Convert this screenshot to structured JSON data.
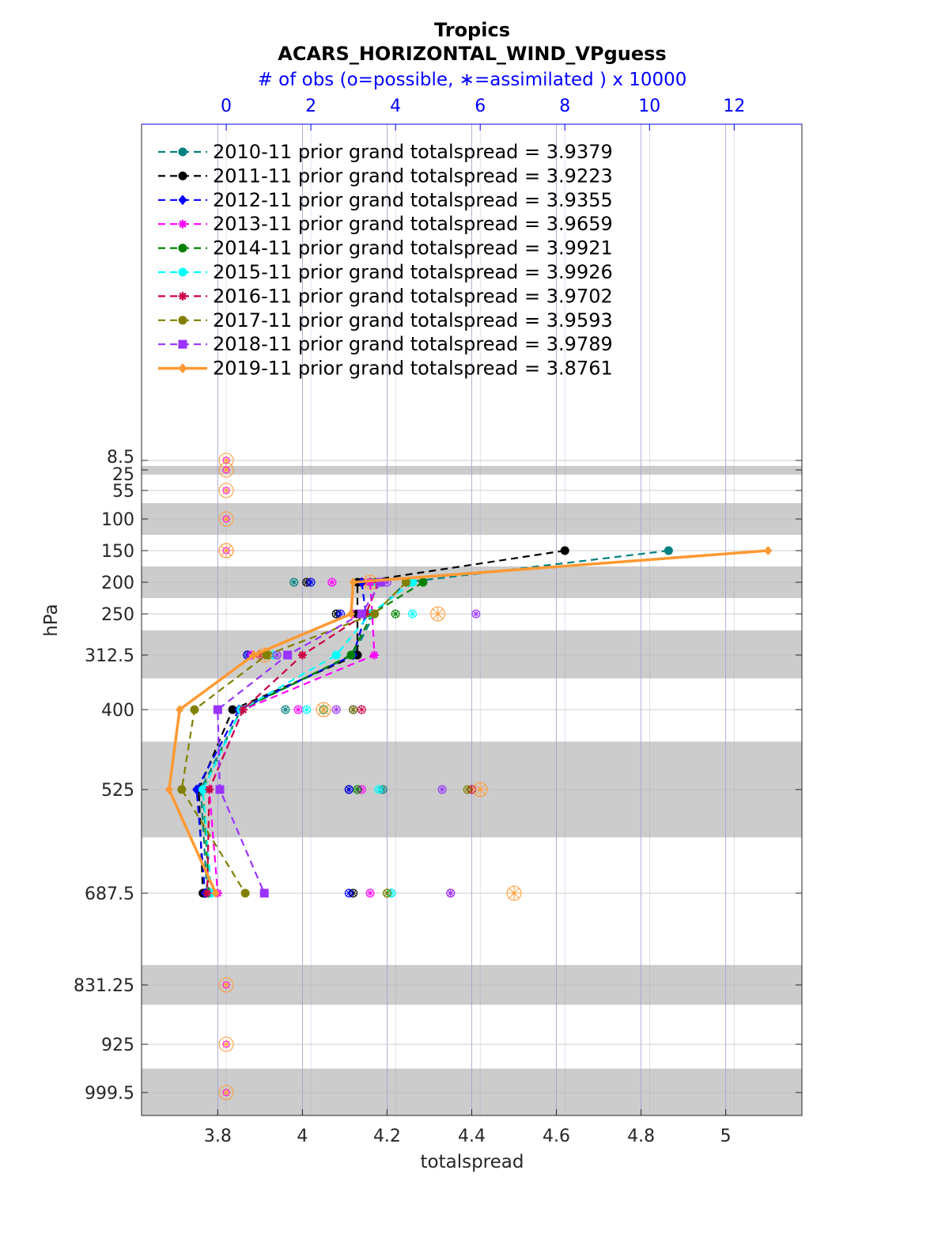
{
  "chart_data": {
    "type": "line",
    "title": "Tropics",
    "subtitle": "ACARS_HORIZONTAL_WIND_VPguess",
    "top_axis_label": "# of obs (o=possible, ∗=assimilated ) x 10000",
    "xlabel": "totalspread",
    "ylabel": "hPa",
    "xlim": [
      3.62,
      5.18
    ],
    "top_xlim": [
      -2,
      13.6
    ],
    "x_ticks": [
      "3.8",
      "4",
      "4.2",
      "4.4",
      "4.6",
      "4.8",
      "5"
    ],
    "top_x_ticks": [
      "0",
      "2",
      "4",
      "6",
      "8",
      "10",
      "12"
    ],
    "levels": [
      8.5,
      25,
      55,
      100,
      150,
      200,
      250,
      312.5,
      400,
      525,
      687.5,
      831.25,
      925,
      999.5
    ],
    "level_labels": [
      "8.5",
      "25",
      "55",
      "100",
      "150",
      "200",
      "250",
      "312.5",
      "400",
      "525",
      "687.5",
      "831.25",
      "925",
      "999.5"
    ],
    "layer_bands": [
      [
        18,
        32
      ],
      [
        75,
        125
      ],
      [
        175,
        225
      ],
      [
        275,
        350
      ],
      [
        450,
        600
      ],
      [
        800,
        862.5
      ],
      [
        962.5,
        1037
      ]
    ],
    "colors": {
      "grid": "#9c9cd6",
      "band": "#cccccc",
      "top_axis": "#0000ff"
    },
    "series": [
      {
        "name": "2010-11",
        "legend": "2010-11 prior grand totalspread = 3.9379",
        "color": "#008080",
        "marker": "circle",
        "solid": false,
        "levels": [
          150,
          200,
          250,
          312.5,
          400,
          525,
          687.5
        ],
        "values": [
          4.865,
          4.245,
          4.17,
          4.12,
          3.855,
          3.76,
          3.775
        ],
        "obs_possible": [
          null,
          1.6,
          2.6,
          0.5,
          1.4,
          3.7,
          3.9
        ],
        "obs_assimilated": [
          null,
          1.6,
          2.6,
          0.5,
          1.4,
          3.7,
          3.9
        ]
      },
      {
        "name": "2011-11",
        "legend": "2011-11 prior grand totalspread = 3.9223",
        "color": "#000000",
        "marker": "circle",
        "solid": false,
        "levels": [
          150,
          200,
          250,
          312.5,
          400,
          525,
          687.5
        ],
        "values": [
          4.62,
          4.13,
          4.13,
          4.13,
          3.835,
          3.755,
          3.765
        ],
        "obs_possible": [
          null,
          1.9,
          2.6,
          0.5,
          3.0,
          2.9,
          3.0
        ],
        "obs_assimilated": [
          null,
          1.9,
          2.6,
          0.5,
          3.0,
          2.9,
          3.0
        ]
      },
      {
        "name": "2012-11",
        "legend": "2012-11 prior grand totalspread = 3.9355",
        "color": "#0000ff",
        "marker": "diamond",
        "solid": false,
        "levels": [
          150,
          200,
          250,
          312.5,
          400,
          525,
          687.5
        ],
        "values": [
          null,
          4.14,
          4.15,
          4.12,
          3.85,
          3.75,
          3.77
        ],
        "obs_possible": [
          null,
          2.0,
          2.7,
          0.5,
          3.0,
          2.9,
          2.9
        ],
        "obs_assimilated": [
          null,
          2.0,
          2.7,
          0.5,
          3.0,
          2.9,
          2.9
        ]
      },
      {
        "name": "2013-11",
        "legend": "2013-11 prior grand totalspread = 3.9659",
        "color": "#ff00ff",
        "marker": "star",
        "solid": false,
        "levels": [
          150,
          200,
          250,
          312.5,
          400,
          525,
          687.5
        ],
        "values": [
          null,
          4.16,
          4.165,
          4.17,
          3.86,
          3.78,
          3.8
        ],
        "obs_possible": [
          null,
          2.5,
          3.0,
          0.6,
          1.7,
          3.2,
          3.4
        ],
        "obs_assimilated": [
          null,
          2.5,
          3.0,
          0.6,
          1.7,
          3.2,
          3.4
        ]
      },
      {
        "name": "2014-11",
        "legend": "2014-11 prior grand totalspread = 3.9921",
        "color": "#008000",
        "marker": "circle",
        "solid": false,
        "levels": [
          150,
          200,
          250,
          312.5,
          400,
          525,
          687.5
        ],
        "values": [
          null,
          4.285,
          4.165,
          4.115,
          3.855,
          3.765,
          3.78
        ],
        "obs_possible": [
          null,
          4.3,
          4.0,
          1.0,
          2.3,
          3.1,
          3.8
        ],
        "obs_assimilated": [
          null,
          4.3,
          4.0,
          1.0,
          2.3,
          3.1,
          3.8
        ]
      },
      {
        "name": "2015-11",
        "legend": "2015-11 prior grand totalspread = 3.9926",
        "color": "#00ffff",
        "marker": "circle",
        "solid": false,
        "levels": [
          150,
          200,
          250,
          312.5,
          400,
          525,
          687.5
        ],
        "values": [
          null,
          4.26,
          4.16,
          4.08,
          3.855,
          3.765,
          3.785
        ],
        "obs_possible": [
          null,
          3.5,
          4.4,
          1.1,
          1.9,
          3.6,
          3.9
        ],
        "obs_assimilated": [
          null,
          3.5,
          4.4,
          1.1,
          1.9,
          3.6,
          3.9
        ]
      },
      {
        "name": "2016-11",
        "legend": "2016-11 prior grand totalspread = 3.9702",
        "color": "#cc0044",
        "marker": "star",
        "solid": false,
        "levels": [
          150,
          200,
          250,
          312.5,
          400,
          525,
          687.5
        ],
        "values": [
          null,
          4.18,
          4.15,
          4.0,
          3.86,
          3.78,
          3.775
        ],
        "obs_possible": [
          null,
          3.2,
          3.1,
          0.8,
          3.2,
          5.8,
          5.3
        ],
        "obs_assimilated": [
          null,
          3.2,
          3.1,
          0.8,
          3.2,
          5.8,
          5.3
        ]
      },
      {
        "name": "2017-11",
        "legend": "2017-11 prior grand totalspread = 3.9593",
        "color": "#808000",
        "marker": "circle",
        "solid": false,
        "levels": [
          150,
          200,
          250,
          312.5,
          400,
          525,
          687.5
        ],
        "values": [
          null,
          4.245,
          4.17,
          3.915,
          3.745,
          3.715,
          3.865
        ],
        "obs_possible": [
          null,
          3.4,
          3.5,
          1.2,
          3.0,
          5.7,
          3.8
        ],
        "obs_assimilated": [
          null,
          3.4,
          3.5,
          1.2,
          3.0,
          5.7,
          3.8
        ]
      },
      {
        "name": "2018-11",
        "legend": "2018-11 prior grand totalspread = 3.9789",
        "color": "#9933ff",
        "marker": "square",
        "solid": false,
        "levels": [
          150,
          200,
          250,
          312.5,
          400,
          525,
          687.5
        ],
        "values": [
          null,
          4.185,
          4.14,
          3.965,
          3.8,
          3.805,
          3.91
        ],
        "obs_possible": [
          null,
          3.8,
          5.9,
          1.2,
          2.6,
          5.1,
          5.3
        ],
        "obs_assimilated": [
          null,
          3.8,
          5.9,
          1.2,
          2.6,
          5.1,
          5.3
        ]
      },
      {
        "name": "2019-11",
        "legend": "2019-11 prior grand totalspread = 3.8761",
        "color": "#ff9933",
        "marker": "diamond",
        "solid": true,
        "levels": [
          150,
          200,
          250,
          312.5,
          400,
          525,
          687.5
        ],
        "values": [
          5.1,
          4.12,
          4.115,
          3.885,
          3.71,
          3.685,
          3.795
        ],
        "obs_possible": [
          0,
          3.4,
          5.0,
          0.9,
          2.3,
          6.0,
          6.8
        ],
        "obs_assimilated": [
          0,
          3.4,
          5.0,
          0.9,
          2.3,
          6.0,
          6.8
        ]
      }
    ],
    "zero_obs_levels": [
      8.5,
      25,
      55,
      100,
      150,
      831.25,
      925,
      999.5
    ]
  }
}
